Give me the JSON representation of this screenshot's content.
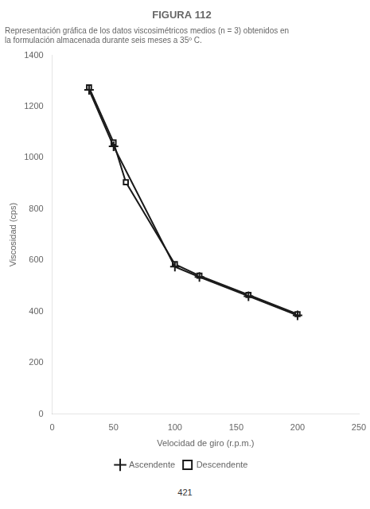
{
  "chart_data": {
    "type": "line",
    "title": "FIGURA 112",
    "subtitle": [
      "Representación gráfica de los datos viscosimétricos medios (n = 3) obtenidos en",
      "la formulación almacenada durante seis meses a 35º C."
    ],
    "annotations": [
      "421"
    ],
    "xlabel": "Velocidad de giro (r.p.m.)",
    "ylabel": "Viscosidad (cps)",
    "series": [
      {
        "name": "Ascendente",
        "color": "#1a1a1a",
        "marker": "plus",
        "x": [
          30,
          50,
          100,
          120,
          160,
          200
        ],
        "values": [
          1265,
          1045,
          575,
          535,
          460,
          385
        ]
      },
      {
        "name": "Descendente",
        "color": "#1a1a1a",
        "marker": "square",
        "x": [
          30,
          50,
          60,
          100,
          120,
          160,
          200
        ],
        "values": [
          1275,
          1060,
          905,
          585,
          540,
          465,
          390
        ]
      }
    ],
    "xlim": [
      0,
      250
    ],
    "ylim": [
      0,
      1400
    ],
    "xticks": [
      0,
      50,
      100,
      150,
      200,
      250
    ],
    "yticks": [
      0,
      200,
      400,
      600,
      800,
      1000,
      1200,
      1400
    ],
    "grid": false,
    "legend": "bottom"
  }
}
